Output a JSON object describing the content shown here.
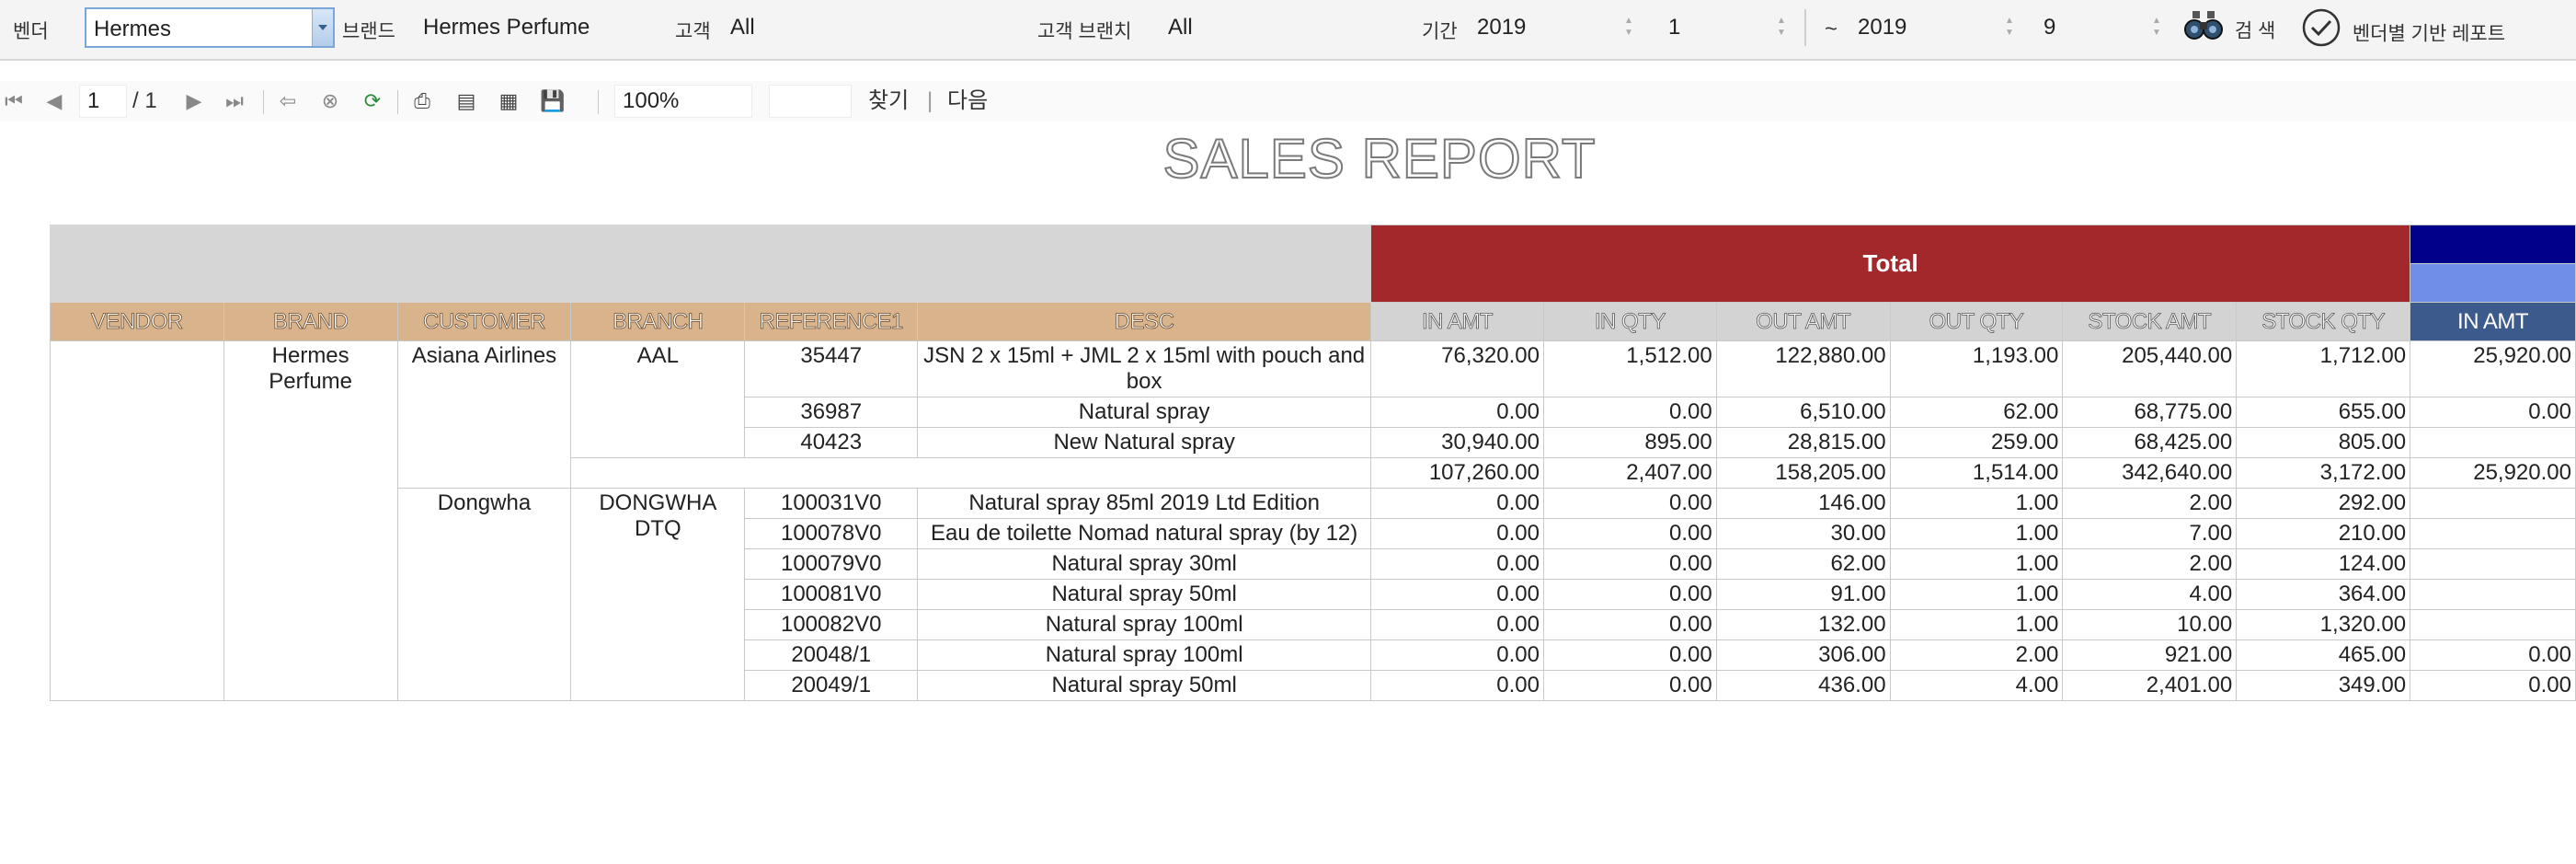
{
  "filters": {
    "vendor_label": "벤더",
    "vendor_value": "Hermes",
    "brand_label": "브랜드",
    "brand_value": "Hermes Perfume",
    "customer_label": "고객",
    "customer_value": "All",
    "branch_label": "고객 브랜치",
    "branch_value": "All",
    "period_label": "기간",
    "from_year": "2019",
    "from_month": "1",
    "range_sep": "~",
    "to_year": "2019",
    "to_month": "9",
    "search_label": "검 색",
    "confirm_label": "벤더별 기반 레포트"
  },
  "viewer": {
    "page": "1",
    "total_pages": "/ 1",
    "zoom": "100%",
    "find_value": "",
    "find_label": "찾기",
    "separator": "|",
    "next_label": "다음"
  },
  "report": {
    "title": "SALES REPORT",
    "group_header": "Total",
    "headers": {
      "vendor": "VENDOR",
      "brand": "BRAND",
      "customer": "CUSTOMER",
      "branch": "BRANCH",
      "reference": "REFERENCE1",
      "desc": "DESC",
      "in_amt": "IN AMT",
      "in_qty": "IN QTY",
      "out_amt": "OUT AMT",
      "out_qty": "OUT QTY",
      "stock_amt": "STOCK AMT",
      "stock_qty": "STOCK QTY",
      "in_amt_2": "IN AMT"
    },
    "vendor": "",
    "brand": "Hermes Perfume",
    "groups": [
      {
        "customer": "Asiana Airlines",
        "branch": "AAL",
        "rows": [
          {
            "ref": "35447",
            "desc": "JSN 2 x 15ml + JML 2 x 15ml with pouch and box",
            "in_amt": "76,320.00",
            "in_qty": "1,512.00",
            "out_amt": "122,880.00",
            "out_qty": "1,193.00",
            "stock_amt": "205,440.00",
            "stock_qty": "1,712.00",
            "in_amt_2": "25,920.00"
          },
          {
            "ref": "36987",
            "desc": "Natural spray",
            "in_amt": "0.00",
            "in_qty": "0.00",
            "out_amt": "6,510.00",
            "out_qty": "62.00",
            "stock_amt": "68,775.00",
            "stock_qty": "655.00",
            "in_amt_2": "0.00"
          },
          {
            "ref": "40423",
            "desc": "New Natural spray",
            "in_amt": "30,940.00",
            "in_qty": "895.00",
            "out_amt": "28,815.00",
            "out_qty": "259.00",
            "stock_amt": "68,425.00",
            "stock_qty": "805.00",
            "in_amt_2": ""
          }
        ],
        "subtotal": {
          "in_amt": "107,260.00",
          "in_qty": "2,407.00",
          "out_amt": "158,205.00",
          "out_qty": "1,514.00",
          "stock_amt": "342,640.00",
          "stock_qty": "3,172.00",
          "in_amt_2": "25,920.00"
        }
      },
      {
        "customer": "Dongwha",
        "branch": "DONGWHA DTQ",
        "rows": [
          {
            "ref": "100031V0",
            "desc": "Natural spray 85ml 2019 Ltd Edition",
            "in_amt": "0.00",
            "in_qty": "0.00",
            "out_amt": "146.00",
            "out_qty": "1.00",
            "stock_amt": "2.00",
            "stock_qty": "292.00",
            "in_amt_2": ""
          },
          {
            "ref": "100078V0",
            "desc": "Eau de toilette Nomad natural spray (by 12)",
            "in_amt": "0.00",
            "in_qty": "0.00",
            "out_amt": "30.00",
            "out_qty": "1.00",
            "stock_amt": "7.00",
            "stock_qty": "210.00",
            "in_amt_2": ""
          },
          {
            "ref": "100079V0",
            "desc": "Natural spray 30ml",
            "in_amt": "0.00",
            "in_qty": "0.00",
            "out_amt": "62.00",
            "out_qty": "1.00",
            "stock_amt": "2.00",
            "stock_qty": "124.00",
            "in_amt_2": ""
          },
          {
            "ref": "100081V0",
            "desc": "Natural spray 50ml",
            "in_amt": "0.00",
            "in_qty": "0.00",
            "out_amt": "91.00",
            "out_qty": "1.00",
            "stock_amt": "4.00",
            "stock_qty": "364.00",
            "in_amt_2": ""
          },
          {
            "ref": "100082V0",
            "desc": "Natural spray 100ml",
            "in_amt": "0.00",
            "in_qty": "0.00",
            "out_amt": "132.00",
            "out_qty": "1.00",
            "stock_amt": "10.00",
            "stock_qty": "1,320.00",
            "in_amt_2": ""
          },
          {
            "ref": "20048/1",
            "desc": "Natural spray 100ml",
            "in_amt": "0.00",
            "in_qty": "0.00",
            "out_amt": "306.00",
            "out_qty": "2.00",
            "stock_amt": "921.00",
            "stock_qty": "465.00",
            "in_amt_2": "0.00"
          },
          {
            "ref": "20049/1",
            "desc": "Natural spray 50ml",
            "in_amt": "0.00",
            "in_qty": "0.00",
            "out_amt": "436.00",
            "out_qty": "4.00",
            "stock_amt": "2,401.00",
            "stock_qty": "349.00",
            "in_amt_2": "0.00"
          }
        ]
      }
    ]
  }
}
